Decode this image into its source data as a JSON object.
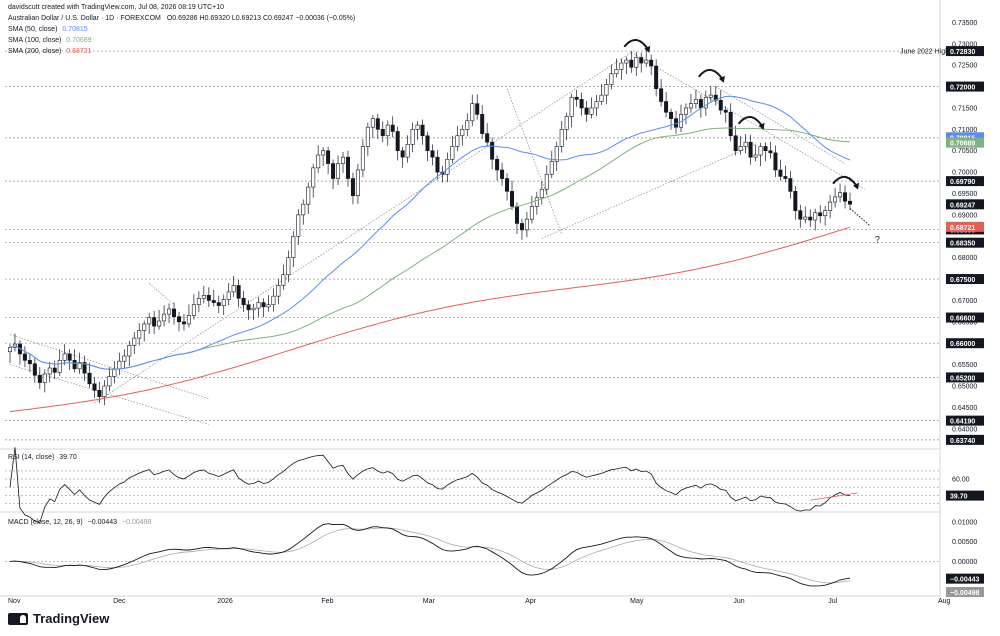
{
  "header": {
    "created_by": "davidscutt created with TradingView.com, Jul 08, 2026 08:19 UTC+10",
    "symbol": "Australian Dollar / U.S. Dollar · 1D · FOREXCOM",
    "ohlc": "O0.69286 H0.69320 L0.69213 C0.69247 −0.00036 (−0.05%)",
    "sma50": {
      "label": "SMA (50, close)",
      "value": "0.70815",
      "color": "#5b8def"
    },
    "sma100": {
      "label": "SMA (100, close)",
      "value": "0.70689",
      "color": "#7fb27f"
    },
    "sma200": {
      "label": "SMA (200, close)",
      "value": "0.68721",
      "color": "#e0605a"
    }
  },
  "footer": {
    "brand": "TradingView"
  },
  "colors": {
    "rsi": "#131722",
    "macd": "#131722",
    "signal": "#aaaaaa",
    "grid": "#eeeeee",
    "level_line": "#888888"
  },
  "chart_data": [
    {
      "type": "candlestick",
      "pane": "price",
      "title": "Australian Dollar / U.S. Dollar · 1D · FOREXCOM",
      "ylim": [
        0.6355,
        0.7365
      ],
      "x_ticks": [
        "Nov",
        "Dec",
        "2026",
        "Feb",
        "Mar",
        "Apr",
        "May",
        "Jun",
        "Jul",
        "Aug"
      ],
      "y_ticks": [
        "0.73500",
        "0.73000",
        "0.72500",
        "0.71500",
        "0.71000",
        "0.70500",
        "0.70000",
        "0.69500",
        "0.69000",
        "0.68000",
        "0.67000",
        "0.66500",
        "0.65500",
        "0.65000",
        "0.64500",
        "0.64000"
      ],
      "horizontal_levels": [
        {
          "value": 0.7283,
          "label": "0.72830",
          "note": "June 2022 High"
        },
        {
          "value": 0.72,
          "label": "0.72000"
        },
        {
          "value": 0.708,
          "label": "0.70800"
        },
        {
          "value": 0.6979,
          "label": "0.69790"
        },
        {
          "value": 0.6866,
          "label": "0.68660"
        },
        {
          "value": 0.6835,
          "label": "0.68350"
        },
        {
          "value": 0.675,
          "label": "0.67500"
        },
        {
          "value": 0.666,
          "label": "0.66600"
        },
        {
          "value": 0.66,
          "label": "0.66000"
        },
        {
          "value": 0.652,
          "label": "0.65200"
        },
        {
          "value": 0.6419,
          "label": "0.64190"
        },
        {
          "value": 0.6374,
          "label": "0.63740"
        }
      ],
      "last_value_badges": [
        {
          "value": 0.70815,
          "label": "0.70815",
          "color": "#5b8def"
        },
        {
          "value": 0.70689,
          "label": "0.70689",
          "color": "#7fb27f"
        },
        {
          "value": 0.69247,
          "label": "0.69247",
          "color": "#131722"
        },
        {
          "value": 0.68721,
          "label": "0.68721",
          "color": "#e0605a"
        }
      ],
      "annotation": "?",
      "candles_close": [
        0.659,
        0.6598,
        0.6575,
        0.656,
        0.6552,
        0.6525,
        0.6508,
        0.6528,
        0.6542,
        0.6532,
        0.656,
        0.6575,
        0.656,
        0.654,
        0.6555,
        0.653,
        0.6505,
        0.649,
        0.6475,
        0.65,
        0.6522,
        0.654,
        0.6558,
        0.657,
        0.6595,
        0.6612,
        0.663,
        0.6645,
        0.666,
        0.664,
        0.6652,
        0.6668,
        0.668,
        0.6662,
        0.665,
        0.6645,
        0.6665,
        0.669,
        0.6705,
        0.6712,
        0.67,
        0.6695,
        0.6688,
        0.6702,
        0.672,
        0.6735,
        0.6705,
        0.669,
        0.6678,
        0.6682,
        0.6695,
        0.6685,
        0.669,
        0.671,
        0.6735,
        0.676,
        0.68,
        0.685,
        0.69,
        0.6925,
        0.6965,
        0.701,
        0.704,
        0.705,
        0.702,
        0.6985,
        0.702,
        0.7035,
        0.6985,
        0.6945,
        0.7005,
        0.706,
        0.7105,
        0.7125,
        0.71,
        0.7085,
        0.711,
        0.7095,
        0.705,
        0.7035,
        0.7065,
        0.71,
        0.711,
        0.7085,
        0.705,
        0.7035,
        0.7,
        0.6995,
        0.703,
        0.706,
        0.7085,
        0.71,
        0.712,
        0.716,
        0.7135,
        0.709,
        0.707,
        0.703,
        0.7005,
        0.6985,
        0.6955,
        0.692,
        0.688,
        0.6865,
        0.689,
        0.692,
        0.694,
        0.696,
        0.6995,
        0.7025,
        0.706,
        0.71,
        0.713,
        0.7175,
        0.717,
        0.715,
        0.7135,
        0.715,
        0.7165,
        0.718,
        0.7205,
        0.723,
        0.724,
        0.7255,
        0.7262,
        0.7245,
        0.7268,
        0.7255,
        0.7262,
        0.7248,
        0.7195,
        0.7165,
        0.714,
        0.7125,
        0.7105,
        0.7135,
        0.715,
        0.716,
        0.717,
        0.715,
        0.7175,
        0.718,
        0.7168,
        0.7145,
        0.714,
        0.7085,
        0.705,
        0.706,
        0.707,
        0.7035,
        0.704,
        0.706,
        0.705,
        0.7045,
        0.7005,
        0.699,
        0.6985,
        0.6955,
        0.691,
        0.689,
        0.6895,
        0.6888,
        0.6905,
        0.6898,
        0.691,
        0.693,
        0.6942,
        0.6952,
        0.6932,
        0.6925
      ]
    },
    {
      "type": "line",
      "pane": "rsi",
      "title": "RSI (14, close)",
      "last_value": 39.7,
      "last_value_label": "39.70",
      "levels": [
        {
          "value": 70,
          "label": ""
        },
        {
          "value": 60,
          "label": "60.00"
        },
        {
          "value": 50,
          "label": ""
        },
        {
          "value": 40,
          "label": ""
        },
        {
          "value": 30,
          "label": ""
        }
      ],
      "ylim": [
        22,
        92
      ]
    },
    {
      "type": "line",
      "pane": "macd",
      "title": "MACD (close, 12, 26, 9)",
      "macd_value": "−0.00443",
      "signal_value": "−0.00498",
      "y_ticks": [
        "0.01000",
        "0.00500",
        "0.00000"
      ],
      "ylim": [
        -0.0078,
        0.0118
      ]
    }
  ]
}
